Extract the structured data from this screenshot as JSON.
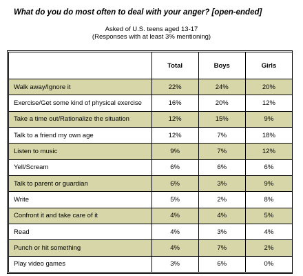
{
  "title": "What do you do most often to deal with your anger?  [open-ended]",
  "subtitle_lines": [
    "Asked of U.S. teens aged 13-17",
    "(Responses with at least 3% mentioning)"
  ],
  "columns": [
    "",
    "Total",
    "Boys",
    "Girls"
  ],
  "shade_color": "#d6d6a8",
  "rows": [
    {
      "label": "Walk away/Ignore it",
      "total": "22%",
      "boys": "24%",
      "girls": "20%",
      "shaded": true
    },
    {
      "label": "Exercise/Get some kind of physical exercise",
      "total": "16%",
      "boys": "20%",
      "girls": "12%",
      "shaded": false
    },
    {
      "label": "Take a time out/Rationalize the situation",
      "total": "12%",
      "boys": "15%",
      "girls": "9%",
      "shaded": true
    },
    {
      "label": "Talk to a friend my own age",
      "total": "12%",
      "boys": "7%",
      "girls": "18%",
      "shaded": false
    },
    {
      "label": "Listen to music",
      "total": "9%",
      "boys": "7%",
      "girls": "12%",
      "shaded": true
    },
    {
      "label": "Yell/Scream",
      "total": "6%",
      "boys": "6%",
      "girls": "6%",
      "shaded": false
    },
    {
      "label": "Talk to parent or guardian",
      "total": "6%",
      "boys": "3%",
      "girls": "9%",
      "shaded": true
    },
    {
      "label": "Write",
      "total": "5%",
      "boys": "2%",
      "girls": "8%",
      "shaded": false
    },
    {
      "label": "Confront it and take care of it",
      "total": "4%",
      "boys": "4%",
      "girls": "5%",
      "shaded": true
    },
    {
      "label": "Read",
      "total": "4%",
      "boys": "3%",
      "girls": "4%",
      "shaded": false
    },
    {
      "label": "Punch or hit something",
      "total": "4%",
      "boys": "7%",
      "girls": "2%",
      "shaded": true
    },
    {
      "label": "Play video games",
      "total": "3%",
      "boys": "6%",
      "girls": "0%",
      "shaded": false
    }
  ]
}
